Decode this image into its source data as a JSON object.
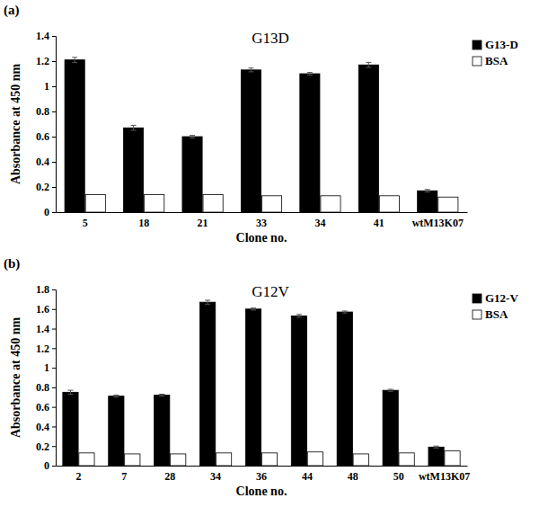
{
  "chart_data": [
    {
      "type": "bar",
      "annotation": "(a)",
      "title": "G13D",
      "x_label": "Clone no.",
      "y_label": "Absorbance at 450 nm",
      "categories": [
        "5",
        "18",
        "21",
        "33",
        "34",
        "41",
        "wtM13K07"
      ],
      "series": [
        {
          "name": "G13-D",
          "color": "#000000",
          "values": [
            1.21,
            0.67,
            0.6,
            1.13,
            1.1,
            1.17,
            0.17
          ],
          "errors": [
            0.02,
            0.02,
            0.01,
            0.015,
            0.01,
            0.02,
            0.01
          ]
        },
        {
          "name": "BSA",
          "color": "#ffffff",
          "values": [
            0.14,
            0.14,
            0.14,
            0.13,
            0.13,
            0.13,
            0.12
          ]
        }
      ],
      "ylim": [
        0,
        1.4
      ],
      "yticks": [
        0,
        0.2,
        0.4,
        0.6,
        0.8,
        1,
        1.2,
        1.4
      ],
      "grid": false,
      "legend": "upper right"
    },
    {
      "type": "bar",
      "annotation": "(b)",
      "title": "G12V",
      "x_label": "Clone no.",
      "y_label": "Absorbance at 450 nm",
      "categories": [
        "2",
        "7",
        "28",
        "34",
        "36",
        "44",
        "48",
        "50",
        "wtM13K07"
      ],
      "series": [
        {
          "name": "G12-V",
          "color": "#000000",
          "values": [
            0.75,
            0.71,
            0.72,
            1.67,
            1.6,
            1.53,
            1.57,
            0.77,
            0.19
          ],
          "errors": [
            0.02,
            0.01,
            0.01,
            0.02,
            0.01,
            0.015,
            0.01,
            0.01,
            0.01
          ]
        },
        {
          "name": "BSA",
          "color": "#ffffff",
          "values": [
            0.13,
            0.12,
            0.12,
            0.13,
            0.13,
            0.14,
            0.12,
            0.13,
            0.15
          ]
        }
      ],
      "ylim": [
        0,
        1.8
      ],
      "yticks": [
        0,
        0.2,
        0.4,
        0.6,
        0.8,
        1,
        1.2,
        1.4,
        1.6,
        1.8
      ],
      "grid": false,
      "legend": "upper right"
    }
  ]
}
